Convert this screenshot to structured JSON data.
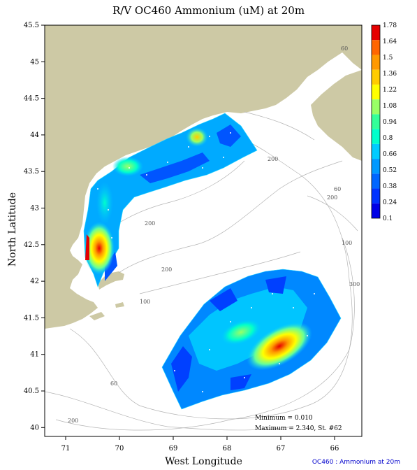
{
  "title": "R/V OC460 Ammonium (uM) at 20m",
  "xlabel": "West Longitude",
  "ylabel": "North Latitude",
  "footer": "OC460 : Ammonium at 20m",
  "stats": {
    "minimum": "Minimum = 0.010",
    "maximum": "Maximum = 2.340, St. #62"
  },
  "x_ticks": [
    "71",
    "70",
    "69",
    "68",
    "67",
    "66"
  ],
  "y_ticks": [
    "45.5",
    "45",
    "44.5",
    "44",
    "43.5",
    "43",
    "42.5",
    "42",
    "41.5",
    "41",
    "40.5",
    "40"
  ],
  "colorbar": {
    "labels": [
      "1.78",
      "1.64",
      "1.5",
      "1.36",
      "1.22",
      "1.08",
      "0.94",
      "0.8",
      "0.66",
      "0.52",
      "0.38",
      "0.24",
      "0.1"
    ],
    "colors": [
      "#e60000",
      "#ff6600",
      "#ff9900",
      "#ffcc00",
      "#ffff00",
      "#99ff66",
      "#33ff99",
      "#00ffcc",
      "#00ccff",
      "#0099ff",
      "#0066ff",
      "#0033ff",
      "#0000e6"
    ]
  },
  "contour_labels": [
    "60",
    "200",
    "60",
    "200",
    "200",
    "100",
    "200",
    "300",
    "100",
    "60",
    "200"
  ],
  "colors": {
    "land": "#cdc9a5",
    "contour": "#b4b4b4"
  }
}
